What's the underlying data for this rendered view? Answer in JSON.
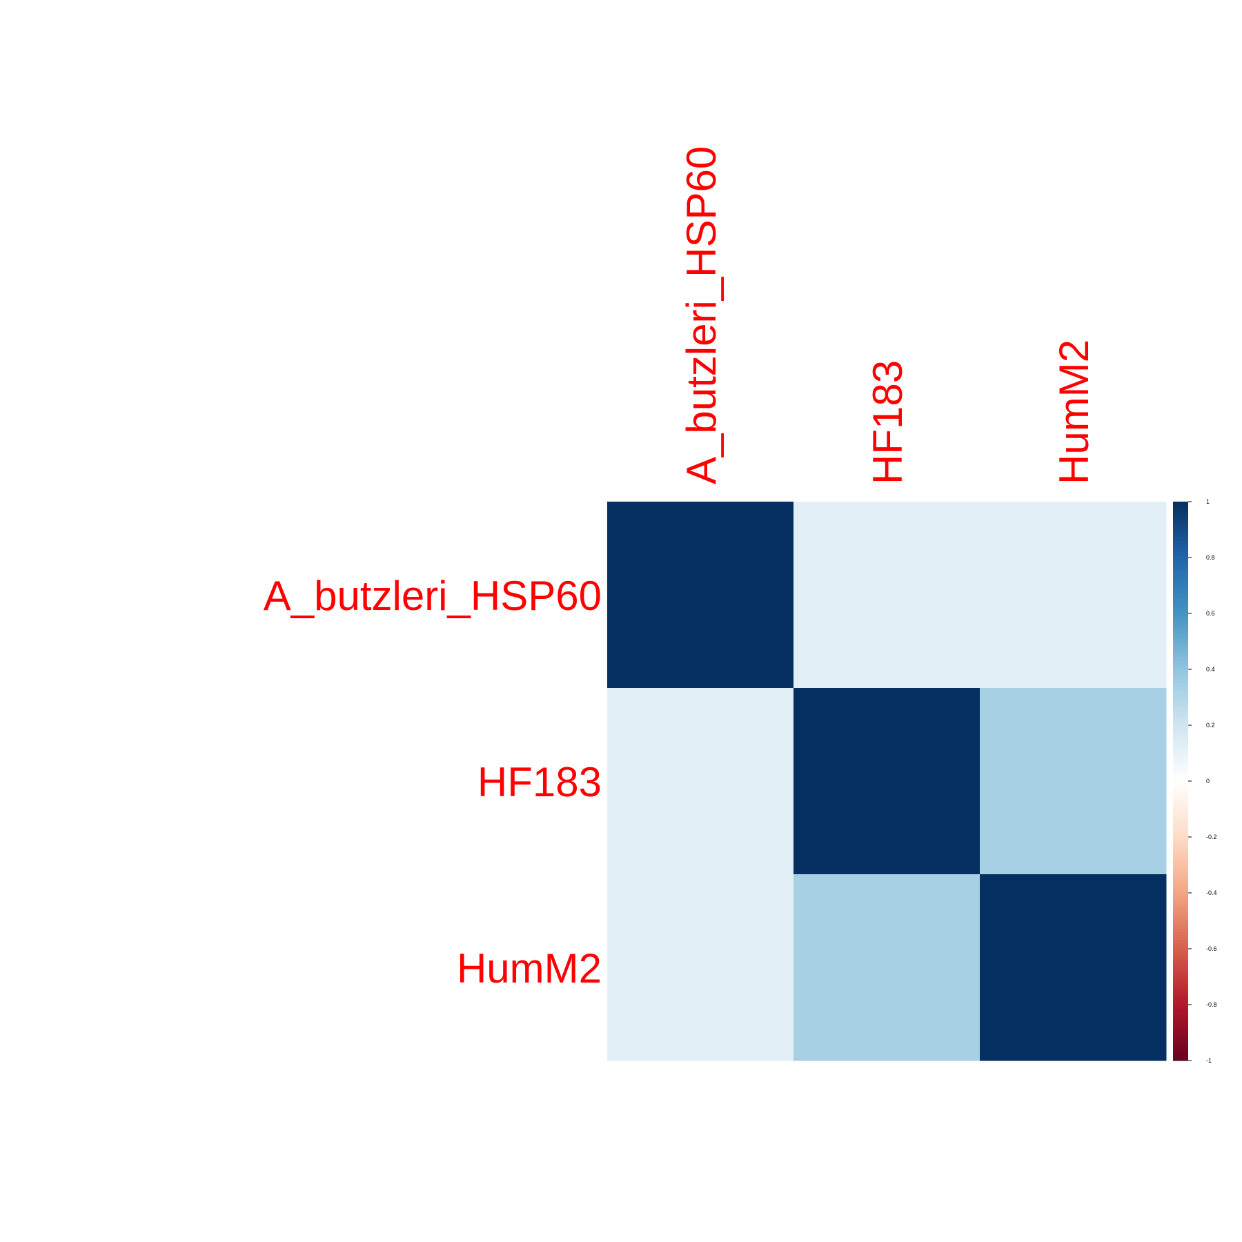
{
  "chart_data": {
    "type": "heatmap",
    "title": "",
    "row_labels": [
      "A_butzleri_HSP60",
      "HF183",
      "HumM2"
    ],
    "col_labels": [
      "A_butzleri_HSP60",
      "HF183",
      "HumM2"
    ],
    "values": [
      [
        1.0,
        0.12,
        0.12
      ],
      [
        0.12,
        1.0,
        0.33
      ],
      [
        0.12,
        0.33,
        1.0
      ]
    ],
    "colorbar": {
      "range": [
        -1,
        1
      ],
      "ticks": [
        "1",
        "0.8",
        "0.6",
        "0.4",
        "0.2",
        "0",
        "-0.2",
        "-0.4",
        "-0.6",
        "-0.8",
        "-1"
      ],
      "tick_values": [
        1,
        0.8,
        0.6,
        0.4,
        0.2,
        0,
        -0.2,
        -0.4,
        -0.6,
        -0.8,
        -1
      ]
    },
    "label_color": "#FF0000",
    "colormap": [
      "#67001F",
      "#B2182B",
      "#D6604D",
      "#F4A582",
      "#FDDBC7",
      "#FFFFFF",
      "#D1E5F0",
      "#92C5DE",
      "#4393C3",
      "#2166AC",
      "#053061"
    ]
  }
}
